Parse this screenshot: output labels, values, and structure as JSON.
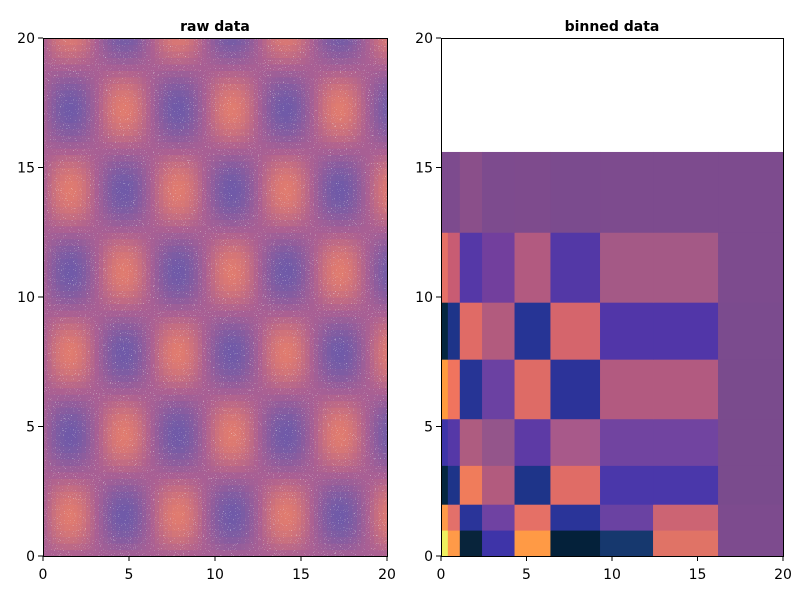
{
  "chart_data": [
    {
      "type": "scatter",
      "title": "raw data",
      "xlabel": "",
      "ylabel": "",
      "xlim": [
        0,
        20
      ],
      "ylim": [
        0,
        20
      ],
      "xticks": [
        0,
        5,
        10,
        15,
        20
      ],
      "yticks": [
        0,
        5,
        10,
        15,
        20
      ],
      "grid": false,
      "description_value_field": "density pattern ~ sin(x)*sin(y) with period ~6.3",
      "pattern": {
        "period": 6.28,
        "colors": {
          "low": "#6f5aa8",
          "mid": "#a85f94",
          "high": "#e07b6f"
        }
      }
    },
    {
      "type": "heatmap",
      "title": "binned data",
      "xlabel": "",
      "ylabel": "",
      "xlim": [
        0,
        20
      ],
      "ylim": [
        0,
        20
      ],
      "xticks": [
        0,
        5,
        10,
        15,
        20
      ],
      "yticks": [
        0,
        5,
        10,
        15,
        20
      ],
      "grid": false,
      "x_edges": [
        0,
        0.4,
        1.1,
        2.4,
        4.3,
        6.4,
        9.3,
        12.4,
        16.2,
        20
      ],
      "y_edges": [
        0,
        1.0,
        2.0,
        3.5,
        5.3,
        7.6,
        9.8,
        12.5,
        15.6,
        20
      ],
      "rows_bottom_to_top": [
        [
          "#eef05e",
          "#ff9a48",
          "#08243b",
          "#3e34a8",
          "#ff9a45",
          "#04213a",
          "#16386e",
          "#e07366",
          "#7d4b8e"
        ],
        [
          "#ff9a48",
          "#e3706a",
          "#2a3499",
          "#6f42a2",
          "#e57066",
          "#2a3499",
          "#6a42a2",
          "#cc6473",
          "#7d4b8e"
        ],
        [
          "#04263f",
          "#1e3489",
          "#f07c5b",
          "#b25b7e",
          "#1e3489",
          "#e06c66",
          "#4a37aa",
          "#4a37aa",
          "#7a4b8d"
        ],
        [
          "#3e34a8",
          "#5538a7",
          "#ae5c80",
          "#94558b",
          "#5d3aa5",
          "#a8598a",
          "#7144a0",
          "#7144a0",
          "#7a4b8d"
        ],
        [
          "#ff9a3d",
          "#f0745e",
          "#263495",
          "#6b41a2",
          "#de6b66",
          "#2c3399",
          "#b25a80",
          "#b25a80",
          "#7a4b8d"
        ],
        [
          "#04263f",
          "#1e3489",
          "#e06b66",
          "#b25b7e",
          "#263495",
          "#d5656c",
          "#5136a8",
          "#5136a8",
          "#7b4b8e"
        ],
        [
          "#e57066",
          "#c85c73",
          "#5538a7",
          "#723f9d",
          "#b25a80",
          "#5338a6",
          "#a45986",
          "#a45986",
          "#7d4b8e"
        ],
        [
          "#7d4b8e",
          "#7d4b8e",
          "#8a4f8a",
          "#7d4b8e",
          "#7e4b8d",
          "#7b4b8e",
          "#7d4b8e",
          "#7d4b8e",
          "#7d4b8e"
        ]
      ],
      "merged_top_rows": 2
    }
  ]
}
